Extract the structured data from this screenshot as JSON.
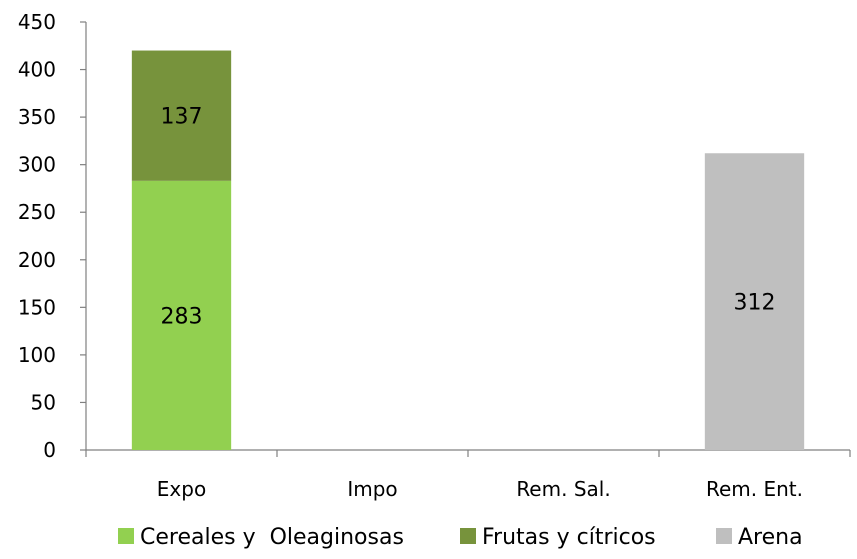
{
  "chart_data": {
    "type": "bar",
    "stacked": true,
    "title": "",
    "xlabel": "",
    "ylabel": "",
    "ylim": [
      0,
      450
    ],
    "yticks": [
      0,
      50,
      100,
      150,
      200,
      250,
      300,
      350,
      400,
      450
    ],
    "grid": false,
    "legend_position": "bottom",
    "categories": [
      "Expo",
      "Impo",
      "Rem. Sal.",
      "Rem. Ent."
    ],
    "series": [
      {
        "name": "Cereales y  Oleaginosas",
        "color": "#92d050",
        "values": [
          283,
          0,
          0,
          0
        ],
        "labels": [
          "283",
          "",
          "",
          ""
        ]
      },
      {
        "name": "Frutas y cítricos",
        "color": "#77933c",
        "values": [
          137,
          0,
          0,
          0
        ],
        "labels": [
          "137",
          "",
          "",
          ""
        ]
      },
      {
        "name": "Arena",
        "color": "#bfbfbf",
        "values": [
          0,
          0,
          0,
          312
        ],
        "labels": [
          "",
          "",
          "",
          "312"
        ]
      }
    ]
  }
}
